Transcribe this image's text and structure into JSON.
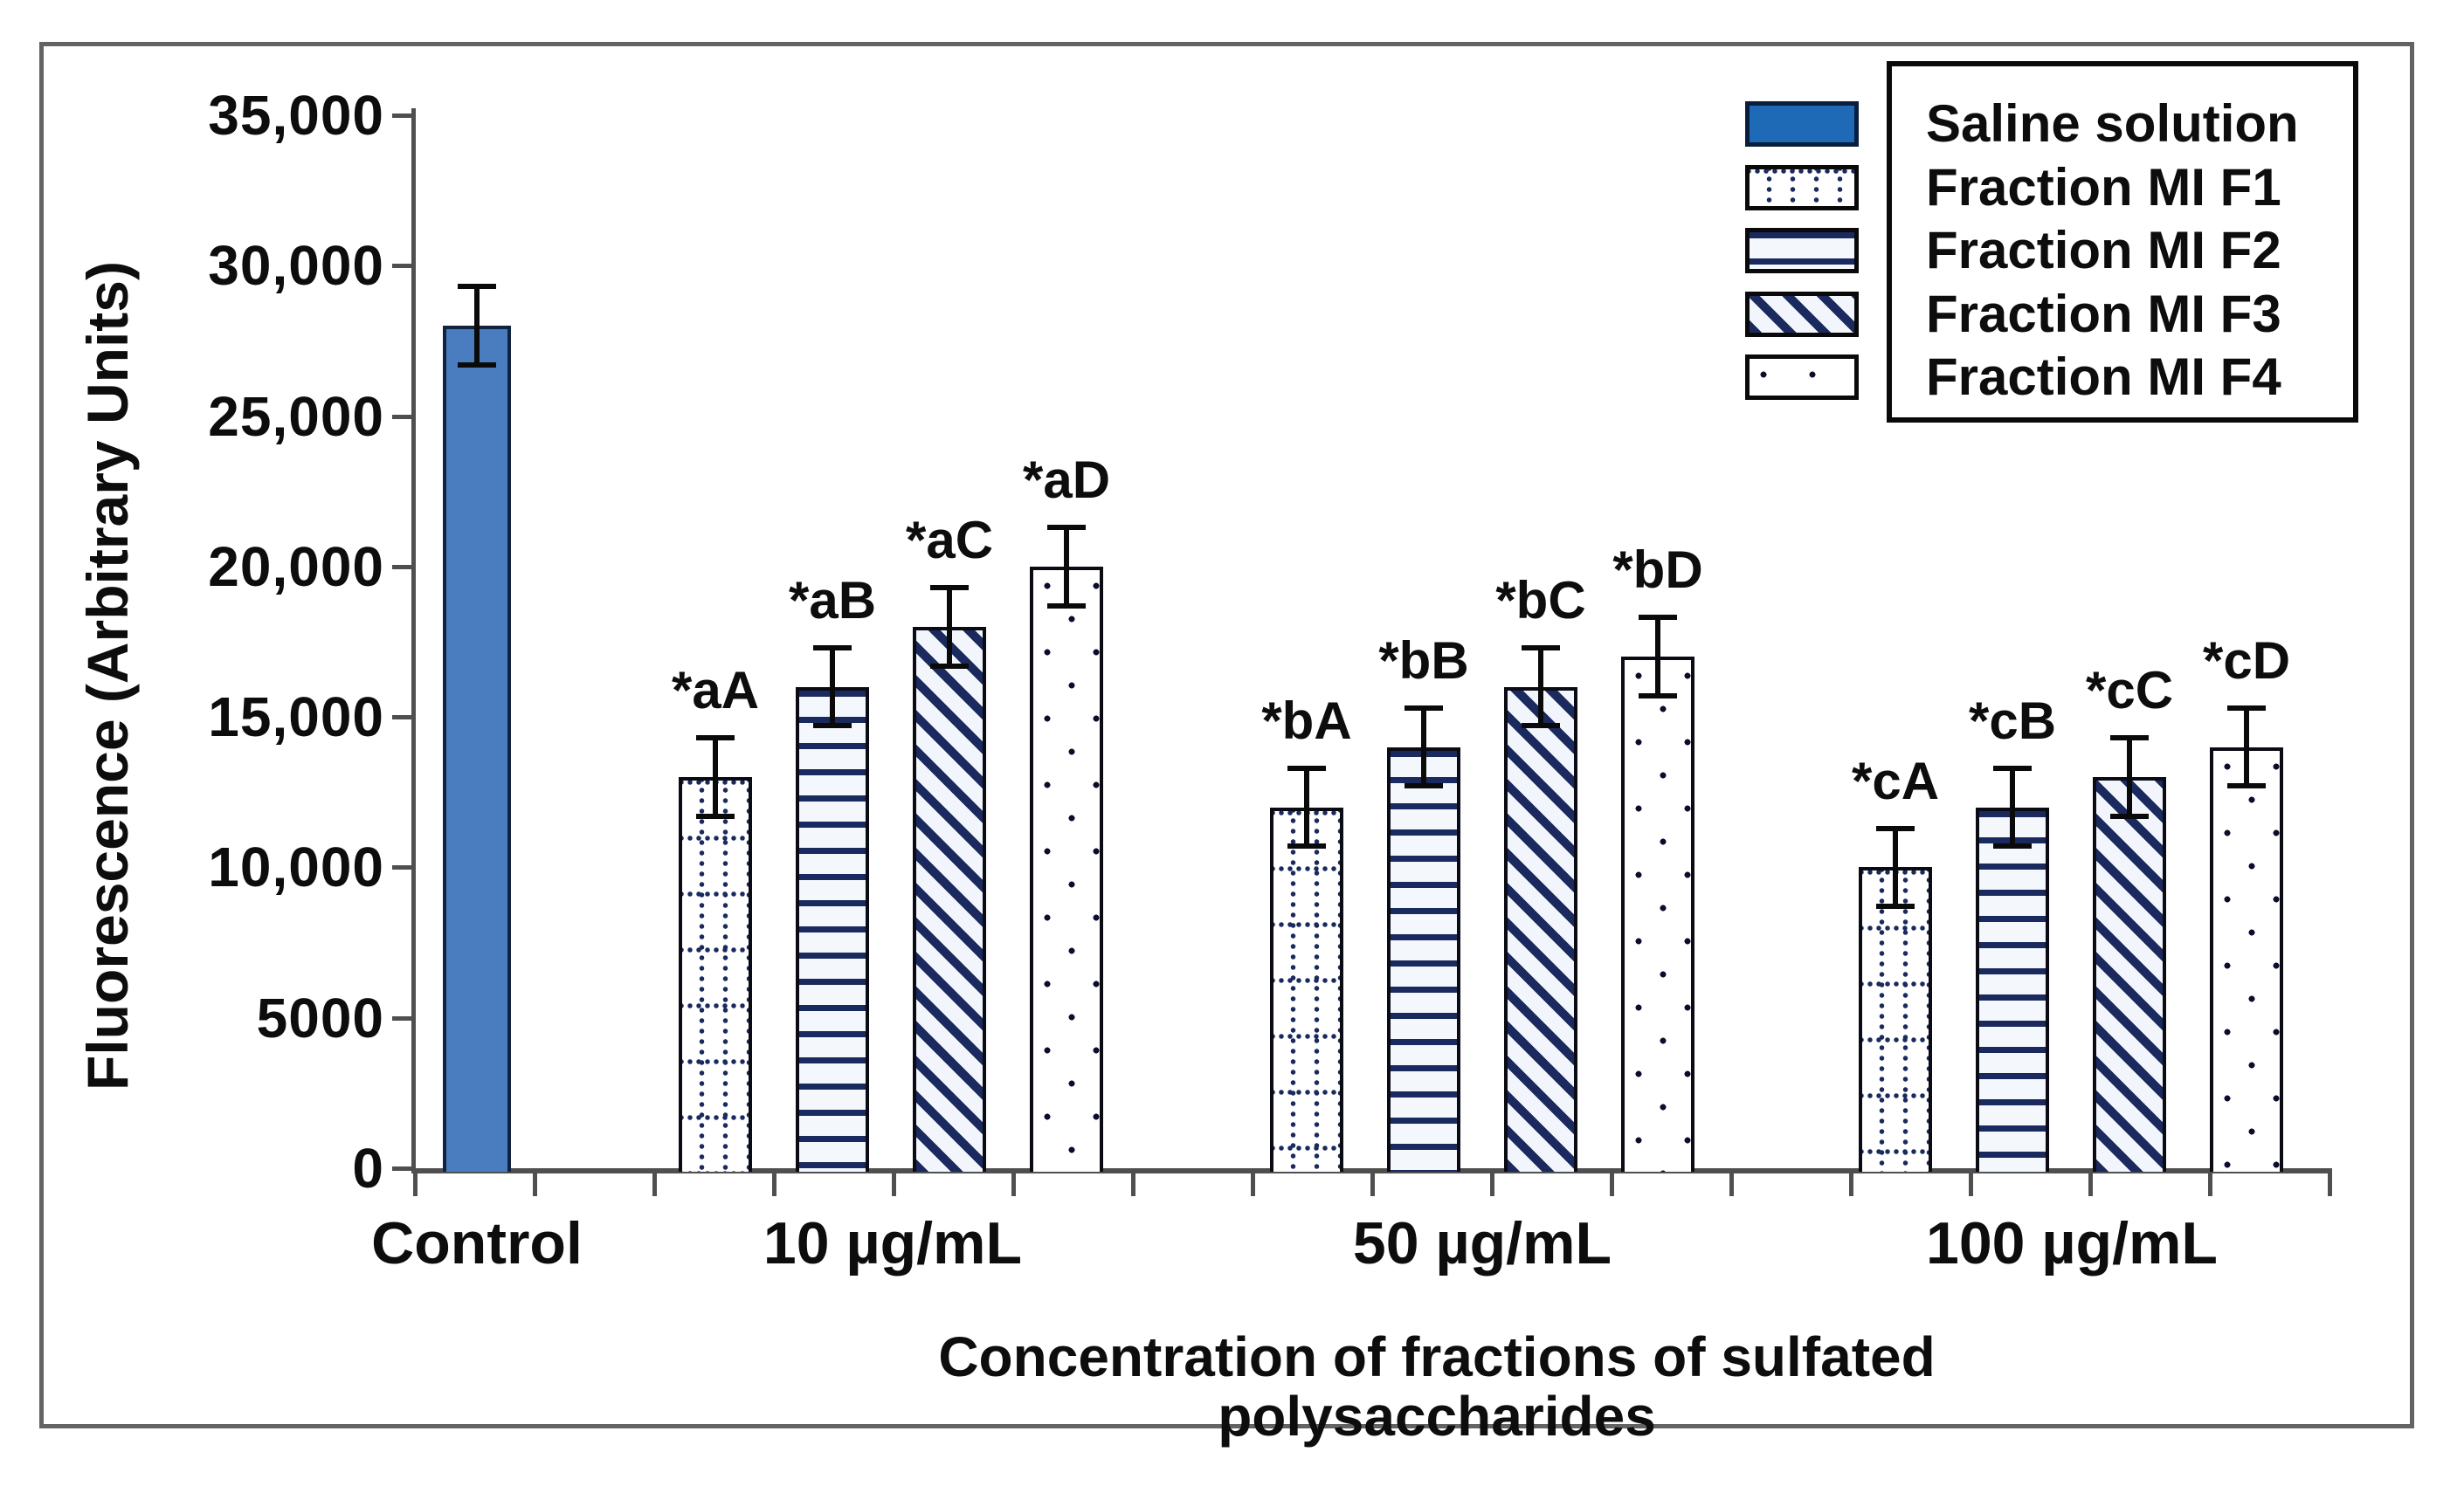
{
  "figure": {
    "y_tick_labels": [
      "35,000",
      "30,000",
      "25,000",
      "20,000",
      "15,000",
      "10,000",
      "5000",
      "0"
    ],
    "category_labels": [
      "Control",
      "10 µg/mL",
      "50 µg/mL",
      "100 µg/mL"
    ]
  },
  "legend": {
    "items": [
      {
        "label": "Saline solution",
        "swatch": "solid-blue"
      },
      {
        "label": "Fraction MI F1",
        "swatch": "dotted-grid"
      },
      {
        "label": "Fraction MI F2",
        "swatch": "horizontal-stripes"
      },
      {
        "label": "Fraction MI F3",
        "swatch": "diagonal-stripes"
      },
      {
        "label": "Fraction MI F4",
        "swatch": "sparse-dots"
      }
    ]
  },
  "colors": {
    "bar_blue": "#4a7dbf",
    "legend_blue": "#1e6ab6",
    "pattern_navy": "#1a2a5e",
    "axis_gray": "#4f4f4f",
    "frame_gray": "#636363",
    "ink": "#0d0d0d"
  },
  "chart_data": {
    "type": "bar",
    "title": "",
    "categories": [
      "Control",
      "10 µg/mL",
      "50 µg/mL",
      "100 µg/mL"
    ],
    "series": [
      {
        "name": "Saline solution",
        "pattern": "solid",
        "values": [
          28000,
          null,
          null,
          null
        ],
        "errors": [
          1300,
          null,
          null,
          null
        ],
        "annotations": [
          null,
          null,
          null,
          null
        ]
      },
      {
        "name": "Fraction MI F1",
        "pattern": "dotted-grid",
        "values": [
          null,
          13000,
          12000,
          10000
        ],
        "errors": [
          null,
          1300,
          1300,
          1300
        ],
        "annotations": [
          null,
          "*aA",
          "*bA",
          "*cA"
        ]
      },
      {
        "name": "Fraction MI F2",
        "pattern": "horizontal-stripes",
        "values": [
          null,
          16000,
          14000,
          12000
        ],
        "errors": [
          null,
          1300,
          1300,
          1300
        ],
        "annotations": [
          null,
          "*aB",
          "*bB",
          "*cB"
        ]
      },
      {
        "name": "Fraction MI F3",
        "pattern": "diagonal-stripes",
        "values": [
          null,
          18000,
          16000,
          13000
        ],
        "errors": [
          null,
          1300,
          1300,
          1300
        ],
        "annotations": [
          null,
          "*aC",
          "*bC",
          "*cC"
        ]
      },
      {
        "name": "Fraction MI F4",
        "pattern": "sparse-dots",
        "values": [
          null,
          20000,
          17000,
          14000
        ],
        "errors": [
          null,
          1300,
          1300,
          1300
        ],
        "annotations": [
          null,
          "*aD",
          "*bD",
          "*cD"
        ]
      }
    ],
    "ylabel": "Fluorescence (Arbitrary Units)",
    "xlabel": "Concentration of fractions of sulfated polysaccharides",
    "ylim": [
      0,
      35000
    ],
    "ytick_interval": 5000,
    "legend_position": "top-right",
    "grid": false,
    "error_bars": true
  }
}
